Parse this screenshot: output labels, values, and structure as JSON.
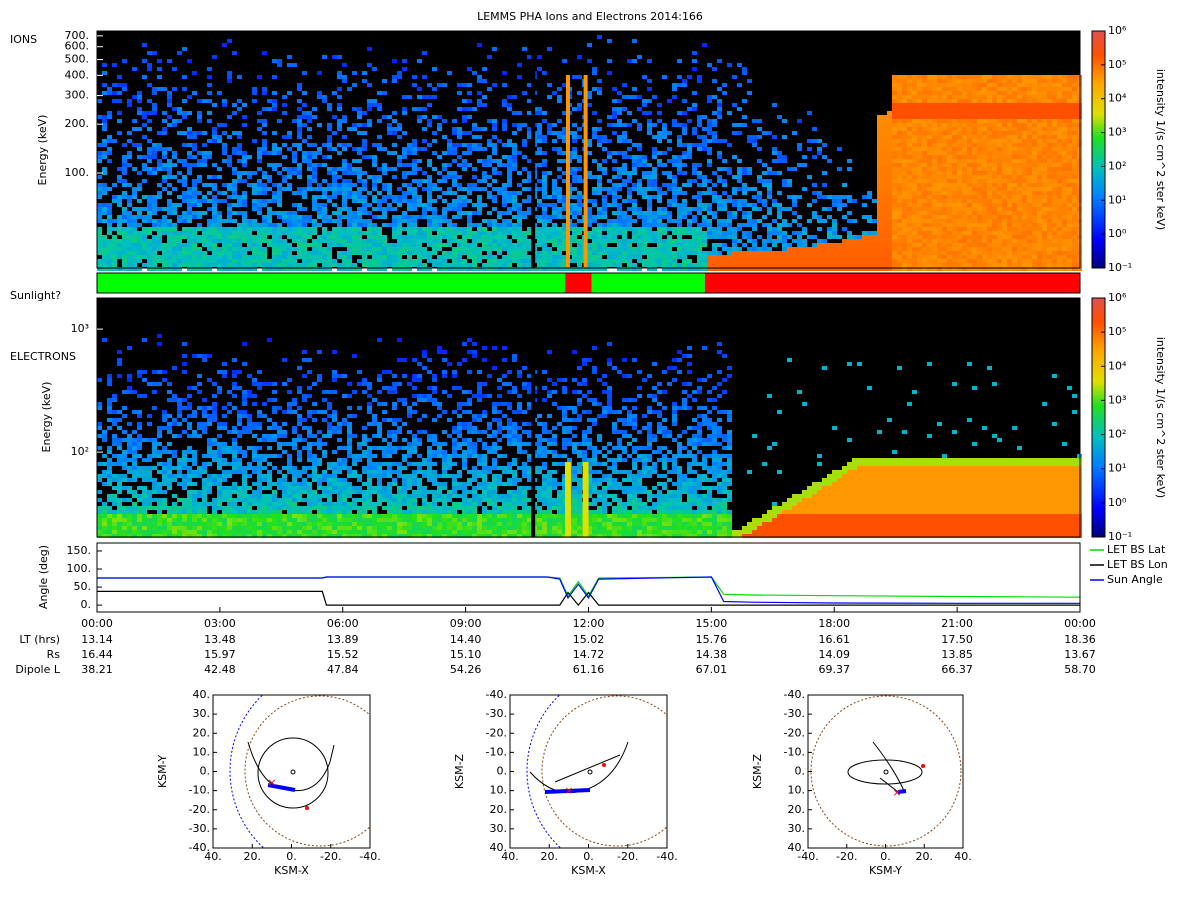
{
  "title": "LEMMS PHA Ions and Electrons  2014:166",
  "chart_data": [
    {
      "type": "spectrogram",
      "name": "IONS",
      "y_label": "Energy (keV)",
      "log_y": true,
      "ylim": [
        26,
        750
      ],
      "yticks": [
        {
          "value": 700,
          "label": "700."
        },
        {
          "value": 600,
          "label": "600."
        },
        {
          "value": 500,
          "label": "500."
        },
        {
          "value": 400,
          "label": "400."
        },
        {
          "value": 300,
          "label": "300."
        },
        {
          "value": 200,
          "label": "200."
        },
        {
          "value": 100,
          "label": "100."
        }
      ],
      "colorbar": {
        "label": "intensity 1/(s cm^2 ster keV)",
        "log": true,
        "lim": [
          0.1,
          1000000
        ],
        "ticks": [
          {
            "value": 0.1,
            "label": "10⁻¹"
          },
          {
            "value": 1,
            "label": "10⁰"
          },
          {
            "value": 10,
            "label": "10¹"
          },
          {
            "value": 100,
            "label": "10²"
          },
          {
            "value": 1000,
            "label": "10³"
          },
          {
            "value": 10000,
            "label": "10⁴"
          },
          {
            "value": 100000,
            "label": "10⁵"
          },
          {
            "value": 1000000,
            "label": "10⁶"
          }
        ]
      }
    },
    {
      "type": "band",
      "label": "Sunlight?",
      "segments": [
        {
          "start": 0,
          "end": 11.43,
          "color": "#00ff00"
        },
        {
          "start": 11.43,
          "end": 12.08,
          "color": "#ff0000"
        },
        {
          "start": 12.08,
          "end": 14.84,
          "color": "#00ff00"
        },
        {
          "start": 14.84,
          "end": 24,
          "color": "#ff0000"
        }
      ]
    },
    {
      "type": "spectrogram",
      "name": "ELECTRONS",
      "y_label": "Energy (keV)",
      "log_y": true,
      "ylim": [
        20.4,
        1790
      ],
      "yticks": [
        {
          "value": 1000,
          "label": "10³"
        },
        {
          "value": 100,
          "label": "10²"
        }
      ],
      "colorbar": {
        "label": "intensity 1/(s cm^2 ster keV)",
        "log": true,
        "lim": [
          0.1,
          1000000
        ],
        "ticks": [
          {
            "value": 0.1,
            "label": "10⁻¹"
          },
          {
            "value": 1,
            "label": "10⁰"
          },
          {
            "value": 10,
            "label": "10¹"
          },
          {
            "value": 100,
            "label": "10²"
          },
          {
            "value": 1000,
            "label": "10³"
          },
          {
            "value": 10000,
            "label": "10⁴"
          },
          {
            "value": 100000,
            "label": "10⁵"
          },
          {
            "value": 1000000,
            "label": "10⁶"
          }
        ]
      }
    },
    {
      "type": "line",
      "y_label": "Angle (deg)",
      "xlim": [
        0,
        24
      ],
      "ylim": [
        -19,
        172
      ],
      "xticks": [
        {
          "value": 0,
          "label": "00:00"
        },
        {
          "value": 3,
          "label": "03:00"
        },
        {
          "value": 6,
          "label": "06:00"
        },
        {
          "value": 9,
          "label": "09:00"
        },
        {
          "value": 12,
          "label": "12:00"
        },
        {
          "value": 15,
          "label": "15:00"
        },
        {
          "value": 18,
          "label": "18:00"
        },
        {
          "value": 21,
          "label": "21:00"
        },
        {
          "value": 24,
          "label": "00:00"
        }
      ],
      "yticks": [
        {
          "value": 0,
          "label": "0."
        },
        {
          "value": 50,
          "label": "50."
        },
        {
          "value": 100,
          "label": "100."
        },
        {
          "value": 150,
          "label": "150."
        }
      ],
      "x": [
        0,
        5.5,
        5.6,
        11,
        11.3,
        11.5,
        11.75,
        12,
        12.25,
        15,
        15.3,
        16,
        18,
        21,
        24
      ],
      "series": [
        {
          "name": "LET BS Lat",
          "color": "#00dd00",
          "values": [
            75,
            75,
            78,
            78,
            75,
            25,
            65,
            25,
            75,
            78,
            30,
            28,
            26,
            24,
            22
          ]
        },
        {
          "name": "LET BS Lon",
          "color": "#000000",
          "values": [
            38,
            38,
            0,
            0,
            0,
            35,
            0,
            35,
            0,
            0,
            0,
            0,
            0,
            0,
            0
          ]
        },
        {
          "name": "Sun Angle",
          "color": "#0000ff",
          "values": [
            75,
            75,
            78,
            78,
            72,
            20,
            58,
            20,
            72,
            78,
            10,
            8,
            6,
            5,
            5
          ]
        }
      ]
    },
    {
      "type": "orbit",
      "x_label": "KSM-X",
      "y_label": "KSM-Y",
      "xlim": [
        40,
        -40
      ],
      "ylim": [
        40,
        -40
      ],
      "xticks": [
        {
          "value": 40,
          "label": "40."
        },
        {
          "value": 20,
          "label": "20."
        },
        {
          "value": 0,
          "label": "0."
        },
        {
          "value": -20,
          "label": "-20."
        },
        {
          "value": -40,
          "label": "-40."
        }
      ],
      "yticks": [
        {
          "value": -40,
          "label": "-40."
        },
        {
          "value": -30,
          "label": "-30."
        },
        {
          "value": -20,
          "label": "-20."
        },
        {
          "value": -10,
          "label": "-10."
        },
        {
          "value": 0,
          "label": "0."
        },
        {
          "value": 10,
          "label": "10."
        },
        {
          "value": 20,
          "label": "20."
        },
        {
          "value": 30,
          "label": "30."
        },
        {
          "value": 40,
          "label": "40."
        }
      ]
    },
    {
      "type": "orbit",
      "x_label": "KSM-X",
      "y_label": "KSM-Z",
      "xlim": [
        40,
        -40
      ],
      "ylim": [
        -40,
        40
      ],
      "xticks": [
        {
          "value": 40,
          "label": "40."
        },
        {
          "value": 20,
          "label": "20."
        },
        {
          "value": 0,
          "label": "0."
        },
        {
          "value": -20,
          "label": "-20."
        },
        {
          "value": -40,
          "label": "-40."
        }
      ],
      "yticks": [
        {
          "value": 40,
          "label": "40."
        },
        {
          "value": 30,
          "label": "30."
        },
        {
          "value": 20,
          "label": "20."
        },
        {
          "value": 10,
          "label": "10."
        },
        {
          "value": 0,
          "label": "0."
        },
        {
          "value": -10,
          "label": "-10."
        },
        {
          "value": -20,
          "label": "-20."
        },
        {
          "value": -30,
          "label": "-30."
        },
        {
          "value": -40,
          "label": "-40."
        }
      ]
    },
    {
      "type": "orbit",
      "x_label": "KSM-Y",
      "y_label": "KSM-Z",
      "xlim": [
        -40,
        40
      ],
      "ylim": [
        -40,
        40
      ],
      "xticks": [
        {
          "value": -40,
          "label": "-40."
        },
        {
          "value": -20,
          "label": "-20."
        },
        {
          "value": 0,
          "label": "0."
        },
        {
          "value": 20,
          "label": "20."
        },
        {
          "value": 40,
          "label": "40."
        }
      ],
      "yticks": [
        {
          "value": 40,
          "label": "40."
        },
        {
          "value": 30,
          "label": "30."
        },
        {
          "value": 20,
          "label": "20."
        },
        {
          "value": 10,
          "label": "10."
        },
        {
          "value": 0,
          "label": "0."
        },
        {
          "value": -10,
          "label": "-10."
        },
        {
          "value": -20,
          "label": "-20."
        },
        {
          "value": -30,
          "label": "-30."
        },
        {
          "value": -40,
          "label": "-40."
        }
      ]
    }
  ],
  "ephemeris": {
    "rows": [
      {
        "label": "LT (hrs)",
        "values": [
          "13.14",
          "13.48",
          "13.89",
          "14.40",
          "15.02",
          "15.76",
          "16.61",
          "17.50",
          "18.36"
        ]
      },
      {
        "label": "Rs",
        "values": [
          "16.44",
          "15.97",
          "15.52",
          "15.10",
          "14.72",
          "14.38",
          "14.09",
          "13.85",
          "13.67"
        ]
      },
      {
        "label": "Dipole L",
        "values": [
          "38.21",
          "42.48",
          "47.84",
          "54.26",
          "61.16",
          "67.01",
          "69.37",
          "66.37",
          "58.70"
        ]
      }
    ]
  }
}
